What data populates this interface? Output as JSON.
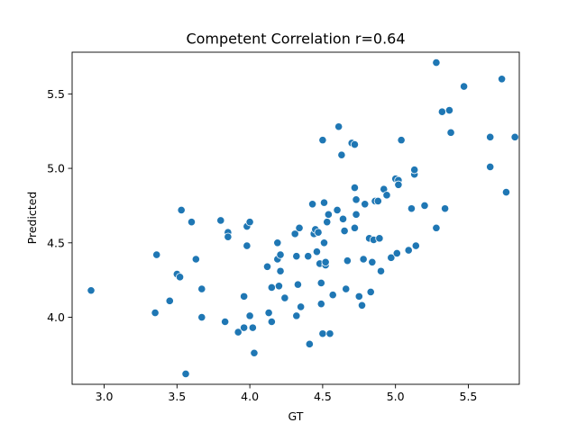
{
  "chart_data": {
    "type": "scatter",
    "title": "Competent Correlation r=0.64",
    "xlabel": "GT",
    "ylabel": "Predicted",
    "xlim": [
      2.78,
      5.85
    ],
    "ylim": [
      3.55,
      5.78
    ],
    "xticks": [
      "3.0",
      "3.5",
      "4.0",
      "4.5",
      "5.0",
      "5.5"
    ],
    "yticks": [
      "4.0",
      "4.5",
      "5.0",
      "5.5"
    ],
    "grid": false,
    "marker_color": "#1f77b4",
    "series": [
      {
        "points": [
          [
            2.91,
            4.18
          ],
          [
            3.35,
            4.03
          ],
          [
            3.36,
            4.42
          ],
          [
            3.45,
            4.11
          ],
          [
            3.5,
            4.29
          ],
          [
            3.52,
            4.27
          ],
          [
            3.53,
            4.72
          ],
          [
            3.56,
            3.62
          ],
          [
            3.6,
            4.64
          ],
          [
            3.63,
            4.39
          ],
          [
            3.67,
            4.19
          ],
          [
            3.67,
            4.0
          ],
          [
            3.8,
            4.65
          ],
          [
            3.83,
            3.97
          ],
          [
            3.85,
            4.57
          ],
          [
            3.85,
            4.54
          ],
          [
            3.92,
            3.9
          ],
          [
            3.96,
            4.14
          ],
          [
            3.96,
            3.93
          ],
          [
            3.98,
            4.48
          ],
          [
            3.98,
            4.61
          ],
          [
            4.0,
            4.64
          ],
          [
            4.0,
            4.01
          ],
          [
            4.02,
            3.93
          ],
          [
            4.03,
            3.76
          ],
          [
            4.12,
            4.34
          ],
          [
            4.13,
            4.03
          ],
          [
            4.15,
            3.97
          ],
          [
            4.15,
            4.2
          ],
          [
            4.19,
            4.5
          ],
          [
            4.19,
            4.39
          ],
          [
            4.2,
            4.21
          ],
          [
            4.21,
            4.42
          ],
          [
            4.21,
            4.31
          ],
          [
            4.24,
            4.13
          ],
          [
            4.31,
            4.56
          ],
          [
            4.32,
            4.41
          ],
          [
            4.32,
            4.01
          ],
          [
            4.34,
            4.6
          ],
          [
            4.35,
            4.07
          ],
          [
            4.33,
            4.22
          ],
          [
            4.4,
            4.41
          ],
          [
            4.41,
            3.82
          ],
          [
            4.43,
            4.76
          ],
          [
            4.44,
            4.56
          ],
          [
            4.45,
            4.59
          ],
          [
            4.46,
            4.44
          ],
          [
            4.47,
            4.57
          ],
          [
            4.48,
            4.36
          ],
          [
            4.49,
            4.23
          ],
          [
            4.49,
            4.09
          ],
          [
            4.5,
            5.19
          ],
          [
            4.5,
            3.89
          ],
          [
            4.51,
            4.5
          ],
          [
            4.51,
            4.77
          ],
          [
            4.52,
            4.35
          ],
          [
            4.52,
            4.37
          ],
          [
            4.53,
            4.64
          ],
          [
            4.54,
            4.69
          ],
          [
            4.55,
            3.89
          ],
          [
            4.57,
            4.15
          ],
          [
            4.6,
            4.72
          ],
          [
            4.61,
            5.28
          ],
          [
            4.63,
            5.09
          ],
          [
            4.64,
            4.66
          ],
          [
            4.65,
            4.58
          ],
          [
            4.66,
            4.19
          ],
          [
            4.67,
            4.38
          ],
          [
            4.7,
            5.17
          ],
          [
            4.72,
            4.6
          ],
          [
            4.72,
            5.16
          ],
          [
            4.72,
            4.87
          ],
          [
            4.73,
            4.79
          ],
          [
            4.73,
            4.69
          ],
          [
            4.75,
            4.14
          ],
          [
            4.77,
            4.08
          ],
          [
            4.78,
            4.39
          ],
          [
            4.79,
            4.76
          ],
          [
            4.82,
            4.53
          ],
          [
            4.83,
            4.17
          ],
          [
            4.84,
            4.37
          ],
          [
            4.85,
            4.52
          ],
          [
            4.86,
            4.78
          ],
          [
            4.88,
            4.78
          ],
          [
            4.89,
            4.53
          ],
          [
            4.9,
            4.31
          ],
          [
            4.92,
            4.86
          ],
          [
            4.94,
            4.82
          ],
          [
            4.97,
            4.4
          ],
          [
            5.0,
            4.93
          ],
          [
            5.01,
            4.43
          ],
          [
            5.02,
            4.92
          ],
          [
            5.02,
            4.89
          ],
          [
            5.04,
            5.19
          ],
          [
            5.09,
            4.45
          ],
          [
            5.11,
            4.73
          ],
          [
            5.13,
            4.96
          ],
          [
            5.13,
            4.99
          ],
          [
            5.14,
            4.48
          ],
          [
            5.2,
            4.75
          ],
          [
            5.28,
            4.6
          ],
          [
            5.28,
            5.71
          ],
          [
            5.32,
            5.38
          ],
          [
            5.34,
            4.73
          ],
          [
            5.37,
            5.39
          ],
          [
            5.38,
            5.24
          ],
          [
            5.47,
            5.55
          ],
          [
            5.65,
            5.21
          ],
          [
            5.65,
            5.01
          ],
          [
            5.73,
            5.6
          ],
          [
            5.76,
            4.84
          ],
          [
            5.82,
            5.21
          ]
        ]
      }
    ]
  }
}
